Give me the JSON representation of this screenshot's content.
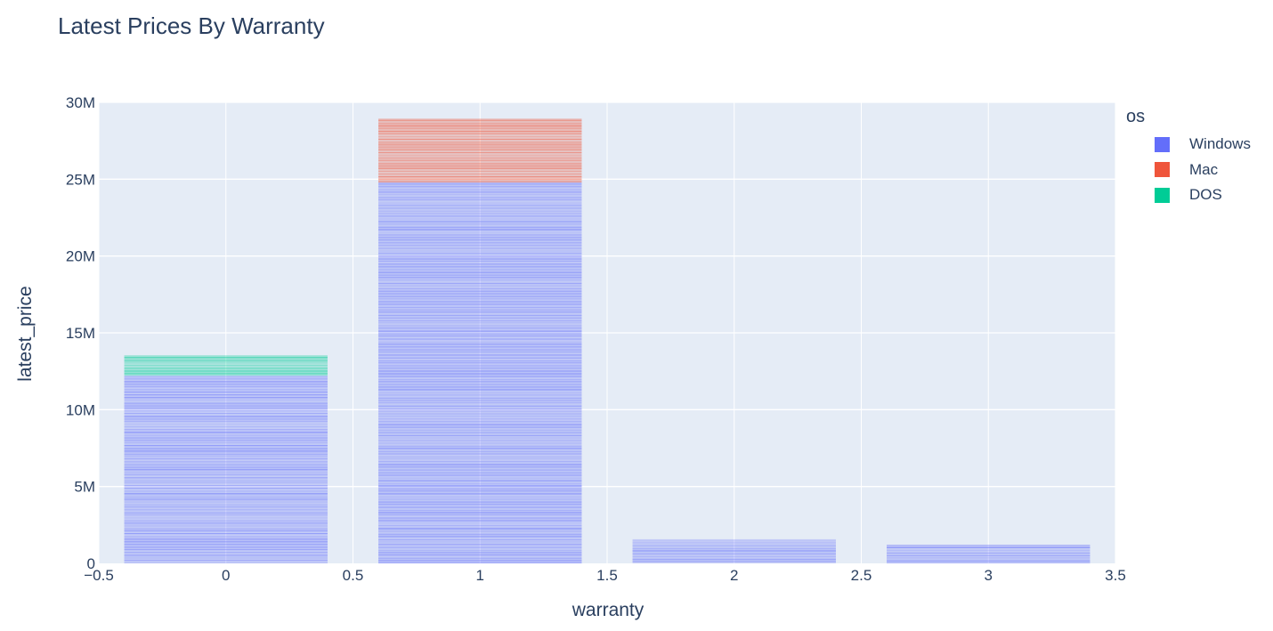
{
  "chart_data": {
    "type": "bar",
    "barmode": "stack",
    "title": "Latest Prices By Warranty",
    "xlabel": "warranty",
    "ylabel": "latest_price",
    "xlim": [
      -0.5,
      3.5
    ],
    "ylim": [
      0,
      30000000
    ],
    "x_ticks": [
      -0.5,
      0,
      0.5,
      1,
      1.5,
      2,
      2.5,
      3,
      3.5
    ],
    "x_tick_labels": [
      "−0.5",
      "0",
      "0.5",
      "1",
      "1.5",
      "2",
      "2.5",
      "3",
      "3.5"
    ],
    "y_ticks": [
      0,
      5000000,
      10000000,
      15000000,
      20000000,
      25000000,
      30000000
    ],
    "y_tick_labels": [
      "0",
      "5M",
      "10M",
      "15M",
      "20M",
      "25M",
      "30M"
    ],
    "grid": true,
    "legend_title": "os",
    "legend_position": "right",
    "categories": [
      0,
      1,
      2,
      3
    ],
    "series": [
      {
        "name": "Windows",
        "color": "#636efa",
        "values": [
          12200000,
          24800000,
          1550000,
          1180000
        ]
      },
      {
        "name": "Mac",
        "color": "#ef553b",
        "values": [
          0,
          4100000,
          0,
          0
        ]
      },
      {
        "name": "DOS",
        "color": "#00cc96",
        "values": [
          1300000,
          0,
          0,
          0
        ]
      }
    ]
  }
}
